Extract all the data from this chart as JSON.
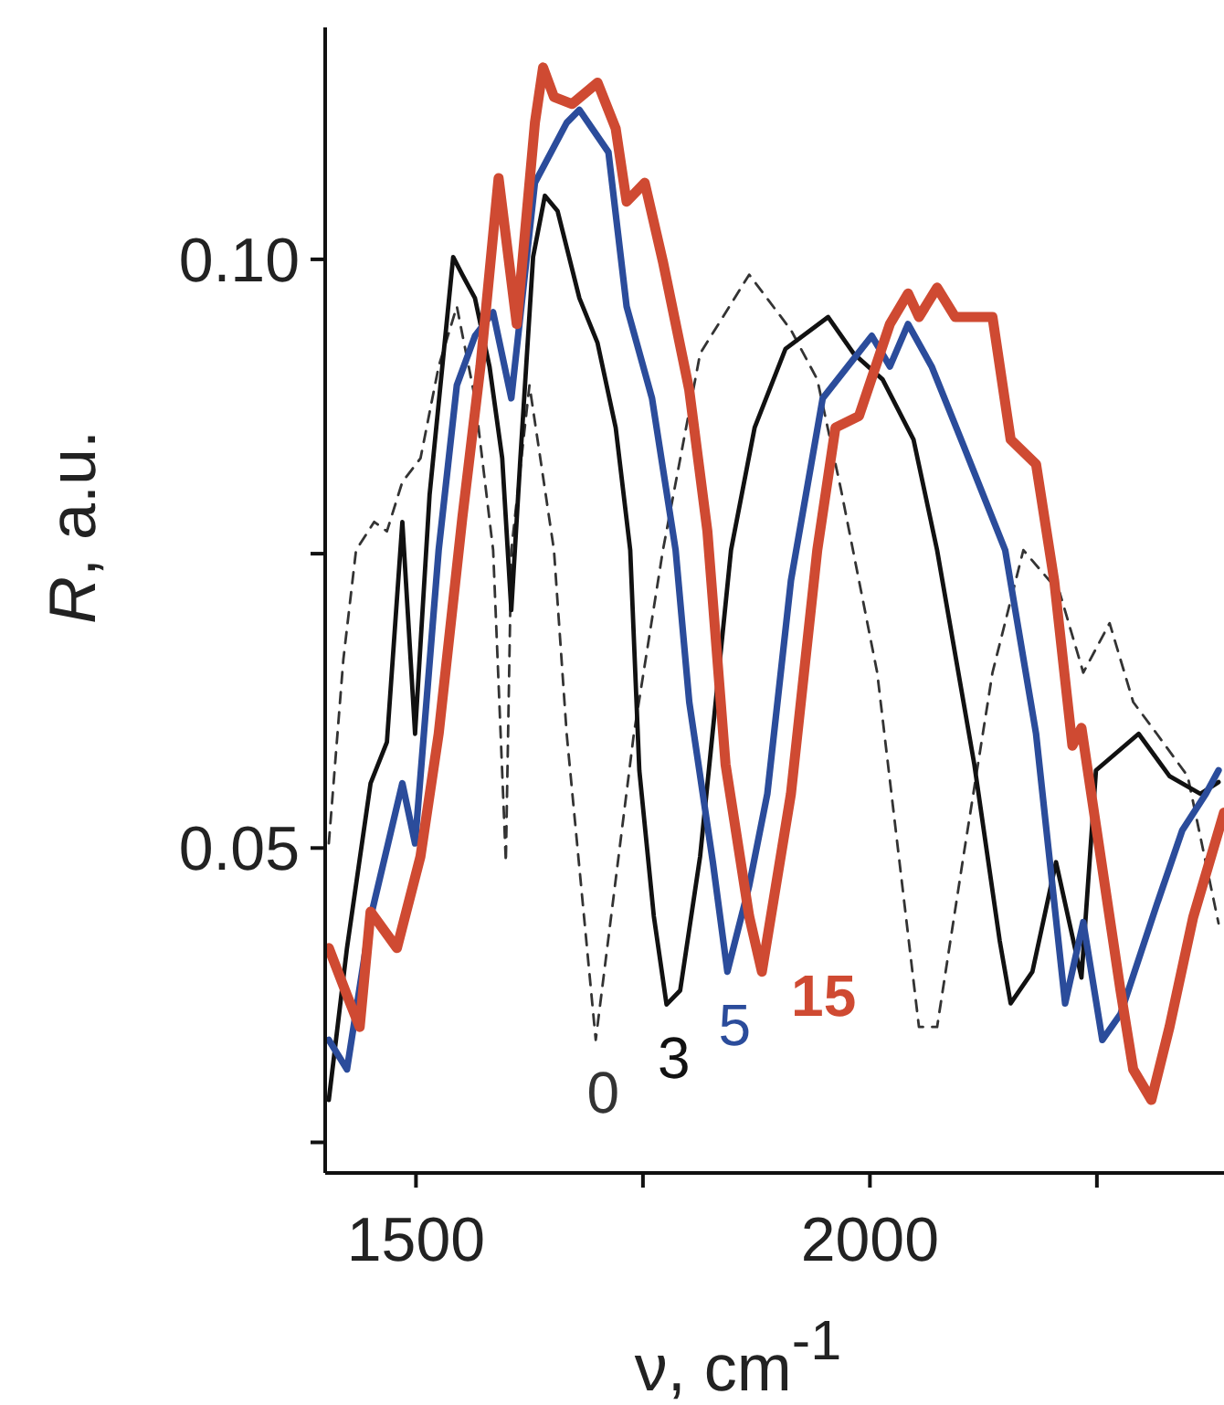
{
  "chart_data": {
    "type": "line",
    "xlabel": "ν, cm$^{-1}$",
    "ylabel": "R, a.u.",
    "xlim": [
      1400,
      2390
    ],
    "ylim": [
      0.0224,
      0.1197
    ],
    "xticks": [
      1500,
      {
        "value": 1750,
        "label": null
      },
      2000,
      {
        "value": 2250,
        "label": null
      }
    ],
    "yticks": [
      {
        "value": 0.025,
        "label": null
      },
      {
        "value": 0.05,
        "label": "0.05"
      },
      {
        "value": 0.075,
        "label": null
      },
      {
        "value": 0.1,
        "label": "0.10"
      }
    ],
    "grid": false,
    "marker": "none",
    "series": [
      {
        "name": "0",
        "color": "#333333",
        "line_style": "dashed",
        "x": [
          1404,
          1420,
          1434,
          1454,
          1468,
          1485,
          1505,
          1525,
          1545,
          1565,
          1585,
          1599,
          1605,
          1625,
          1652,
          1666,
          1698,
          1740,
          1772,
          1813,
          1867,
          1913,
          1942,
          1968,
          2008,
          2054,
          2074,
          2103,
          2135,
          2169,
          2209,
          2235,
          2264,
          2290,
          2316,
          2350,
          2384
        ],
        "values": [
          0.0504,
          0.066,
          0.0753,
          0.0777,
          0.0769,
          0.0811,
          0.0831,
          0.0909,
          0.096,
          0.0882,
          0.0753,
          0.0488,
          0.0753,
          0.0893,
          0.0753,
          0.0597,
          0.0337,
          0.0597,
          0.0753,
          0.092,
          0.0987,
          0.094,
          0.0898,
          0.0805,
          0.0649,
          0.0348,
          0.0348,
          0.0493,
          0.0649,
          0.0753,
          0.0717,
          0.0649,
          0.0691,
          0.0624,
          0.0597,
          0.0561,
          0.0436
        ]
      },
      {
        "name": "3",
        "color": "#111111",
        "line_style": "solid",
        "x": [
          1404,
          1424,
          1450,
          1468,
          1485,
          1499,
          1515,
          1541,
          1551,
          1565,
          1581,
          1595,
          1605,
          1615,
          1629,
          1642,
          1656,
          1680,
          1700,
          1720,
          1736,
          1746,
          1762,
          1776,
          1791,
          1813,
          1847,
          1873,
          1907,
          1954,
          1982,
          2014,
          2048,
          2074,
          2115,
          2143,
          2155,
          2179,
          2205,
          2233,
          2249,
          2296,
          2330,
          2364,
          2384
        ],
        "values": [
          0.0286,
          0.0415,
          0.0555,
          0.059,
          0.0777,
          0.0597,
          0.08,
          0.1002,
          0.0987,
          0.0967,
          0.0909,
          0.0831,
          0.0702,
          0.0831,
          0.1002,
          0.1054,
          0.1041,
          0.0967,
          0.0929,
          0.0857,
          0.0753,
          0.0566,
          0.0442,
          0.0367,
          0.0379,
          0.0493,
          0.0753,
          0.0857,
          0.0924,
          0.0951,
          0.092,
          0.0898,
          0.0847,
          0.0753,
          0.0571,
          0.0421,
          0.0368,
          0.0395,
          0.0488,
          0.039,
          0.0566,
          0.0597,
          0.0561,
          0.0546,
          0.0556
        ]
      },
      {
        "name": "5",
        "color": "#2b4c9b",
        "line_style": "solid",
        "x": [
          1404,
          1424,
          1450,
          1485,
          1499,
          1525,
          1545,
          1565,
          1585,
          1605,
          1631,
          1666,
          1680,
          1712,
          1732,
          1760,
          1786,
          1801,
          1827,
          1843,
          1867,
          1887,
          1913,
          1948,
          2002,
          2022,
          2042,
          2068,
          2103,
          2149,
          2183,
          2215,
          2235,
          2256,
          2276,
          2316,
          2344,
          2370,
          2384
        ],
        "values": [
          0.0337,
          0.0312,
          0.0441,
          0.0555,
          0.0504,
          0.0753,
          0.0893,
          0.0935,
          0.0955,
          0.0882,
          0.1065,
          0.1116,
          0.1127,
          0.1091,
          0.096,
          0.0882,
          0.0753,
          0.0624,
          0.0488,
          0.0395,
          0.0468,
          0.0546,
          0.0727,
          0.0882,
          0.0935,
          0.0909,
          0.0945,
          0.0909,
          0.0842,
          0.0753,
          0.0597,
          0.0368,
          0.0437,
          0.0337,
          0.0359,
          0.0452,
          0.0515,
          0.0546,
          0.0566
        ]
      },
      {
        "name": "15",
        "color": "#cf4a32",
        "line_style": "solid",
        "x": [
          1404,
          1424,
          1438,
          1450,
          1479,
          1505,
          1525,
          1551,
          1571,
          1591,
          1611,
          1631,
          1640,
          1652,
          1672,
          1700,
          1720,
          1732,
          1752,
          1772,
          1801,
          1821,
          1841,
          1867,
          1881,
          1913,
          1942,
          1962,
          1988,
          2022,
          2042,
          2054,
          2074,
          2094,
          2135,
          2155,
          2183,
          2203,
          2223,
          2233,
          2249,
          2276,
          2290,
          2310,
          2330,
          2356,
          2390
        ],
        "values": [
          0.0415,
          0.0375,
          0.0348,
          0.0446,
          0.0415,
          0.0493,
          0.0597,
          0.078,
          0.0909,
          0.1069,
          0.0945,
          0.1116,
          0.1163,
          0.1138,
          0.1132,
          0.115,
          0.1111,
          0.1049,
          0.1065,
          0.0998,
          0.0889,
          0.0769,
          0.0571,
          0.0442,
          0.0395,
          0.0546,
          0.0753,
          0.0857,
          0.0867,
          0.0945,
          0.0971,
          0.0951,
          0.0976,
          0.0951,
          0.0951,
          0.0847,
          0.0826,
          0.0727,
          0.0587,
          0.0602,
          0.0519,
          0.0379,
          0.0312,
          0.0286,
          0.0348,
          0.0441,
          0.053
        ]
      }
    ]
  }
}
